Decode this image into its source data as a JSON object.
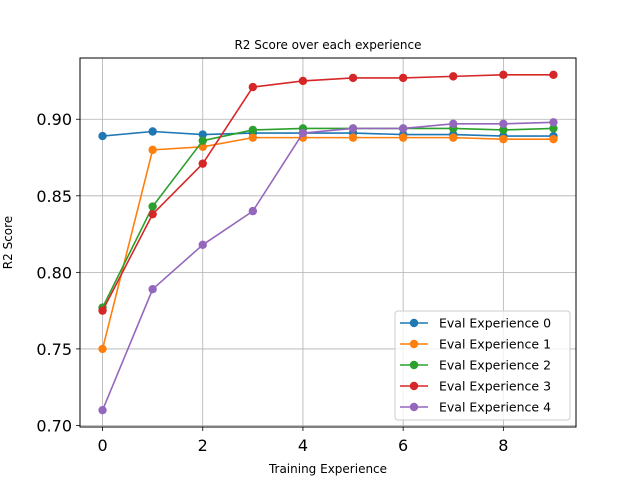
{
  "chart_data": {
    "type": "line",
    "title": "R2 Score over each experience",
    "xlabel": "Training Experience",
    "ylabel": "R2 Score",
    "x": [
      0,
      1,
      2,
      3,
      4,
      5,
      6,
      7,
      8,
      9
    ],
    "xlim": [
      -0.45,
      9.45
    ],
    "ylim": [
      0.699,
      0.94
    ],
    "xticks": [
      0,
      2,
      4,
      6,
      8
    ],
    "yticks": [
      0.7,
      0.75,
      0.8,
      0.85,
      0.9
    ],
    "xtick_labels": [
      "0",
      "2",
      "4",
      "6",
      "8"
    ],
    "ytick_labels": [
      "0.70",
      "0.75",
      "0.80",
      "0.85",
      "0.90"
    ],
    "grid": true,
    "legend_position": "lower-right",
    "series": [
      {
        "name": "Eval Experience 0",
        "color": "#1f77b4",
        "values": [
          0.889,
          0.892,
          0.89,
          0.891,
          0.891,
          0.891,
          0.89,
          0.89,
          0.889,
          0.889
        ]
      },
      {
        "name": "Eval Experience 1",
        "color": "#ff7f0e",
        "values": [
          0.75,
          0.88,
          0.882,
          0.888,
          0.888,
          0.888,
          0.888,
          0.888,
          0.887,
          0.887
        ]
      },
      {
        "name": "Eval Experience 2",
        "color": "#2ca02c",
        "values": [
          0.777,
          0.843,
          0.886,
          0.893,
          0.894,
          0.894,
          0.894,
          0.894,
          0.893,
          0.894
        ]
      },
      {
        "name": "Eval Experience 3",
        "color": "#d62728",
        "values": [
          0.775,
          0.838,
          0.871,
          0.921,
          0.925,
          0.927,
          0.927,
          0.928,
          0.929,
          0.929
        ]
      },
      {
        "name": "Eval Experience 4",
        "color": "#9467bd",
        "values": [
          0.71,
          0.789,
          0.818,
          0.84,
          0.891,
          0.894,
          0.894,
          0.897,
          0.897,
          0.898
        ]
      }
    ]
  }
}
